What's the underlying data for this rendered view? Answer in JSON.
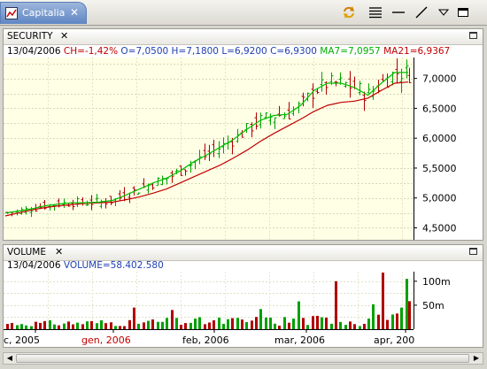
{
  "view": {
    "title": "Capitalia",
    "toolbar": [
      "refresh-icon",
      "menu-lines-icon",
      "horizontal-line-icon",
      "trendline-icon",
      "view-menu-icon",
      "maximize-icon"
    ]
  },
  "security_panel": {
    "title": "SECURITY",
    "info": {
      "date": "13/04/2006",
      "ch": "CH=-1,42%",
      "open": "O=7,0500",
      "high": "H=7,1800",
      "low": "L=6,9200",
      "close": "C=6,9300",
      "ma7": "MA7=7,0957",
      "ma21": "MA21=6,9367"
    },
    "y_labels": [
      "7,0000",
      "6,5000",
      "6,0000",
      "5,5000",
      "5,0000",
      "4,5000"
    ]
  },
  "volume_panel": {
    "title": "VOLUME",
    "info": {
      "date": "13/04/2006",
      "volume": "VOLUME=58.402.580"
    },
    "y_labels": [
      "100m",
      "50m"
    ]
  },
  "x_axis": {
    "labels": [
      "c, 2005",
      "gen, 2006",
      "feb, 2006",
      "mar, 2006",
      "apr, 200"
    ]
  },
  "colors": {
    "up": "#00a000",
    "down": "#b00000",
    "ma7": "#00c000",
    "ma21": "#c00000",
    "plot_bg": "#ffffe6",
    "tab_active": "#6f93cc"
  },
  "chart_data": {
    "type": "line",
    "x_range": [
      "2005-12-20",
      "2006-04-13"
    ],
    "ylim": [
      4.3,
      7.35
    ],
    "series": [
      {
        "name": "MA7",
        "values": [
          4.75,
          4.78,
          4.82,
          4.87,
          4.9,
          4.92,
          4.92,
          4.93,
          4.96,
          5.05,
          5.15,
          5.25,
          5.33,
          5.45,
          5.6,
          5.72,
          5.85,
          5.98,
          6.15,
          6.3,
          6.38,
          6.4,
          6.55,
          6.8,
          6.92,
          6.92,
          6.85,
          6.72,
          6.92,
          7.1,
          7.1
        ]
      },
      {
        "name": "MA21",
        "values": [
          4.7,
          4.75,
          4.8,
          4.84,
          4.87,
          4.89,
          4.91,
          4.92,
          4.93,
          4.97,
          5.02,
          5.08,
          5.15,
          5.25,
          5.35,
          5.45,
          5.55,
          5.67,
          5.8,
          5.95,
          6.08,
          6.2,
          6.32,
          6.45,
          6.55,
          6.6,
          6.62,
          6.67,
          6.8,
          6.92,
          6.94
        ]
      }
    ],
    "last_bar": {
      "open": 7.05,
      "high": 7.18,
      "low": 6.92,
      "close": 6.93,
      "volume": 58402580,
      "date": "13/04/2006"
    },
    "volume_ylim": [
      0,
      120000000
    ]
  }
}
